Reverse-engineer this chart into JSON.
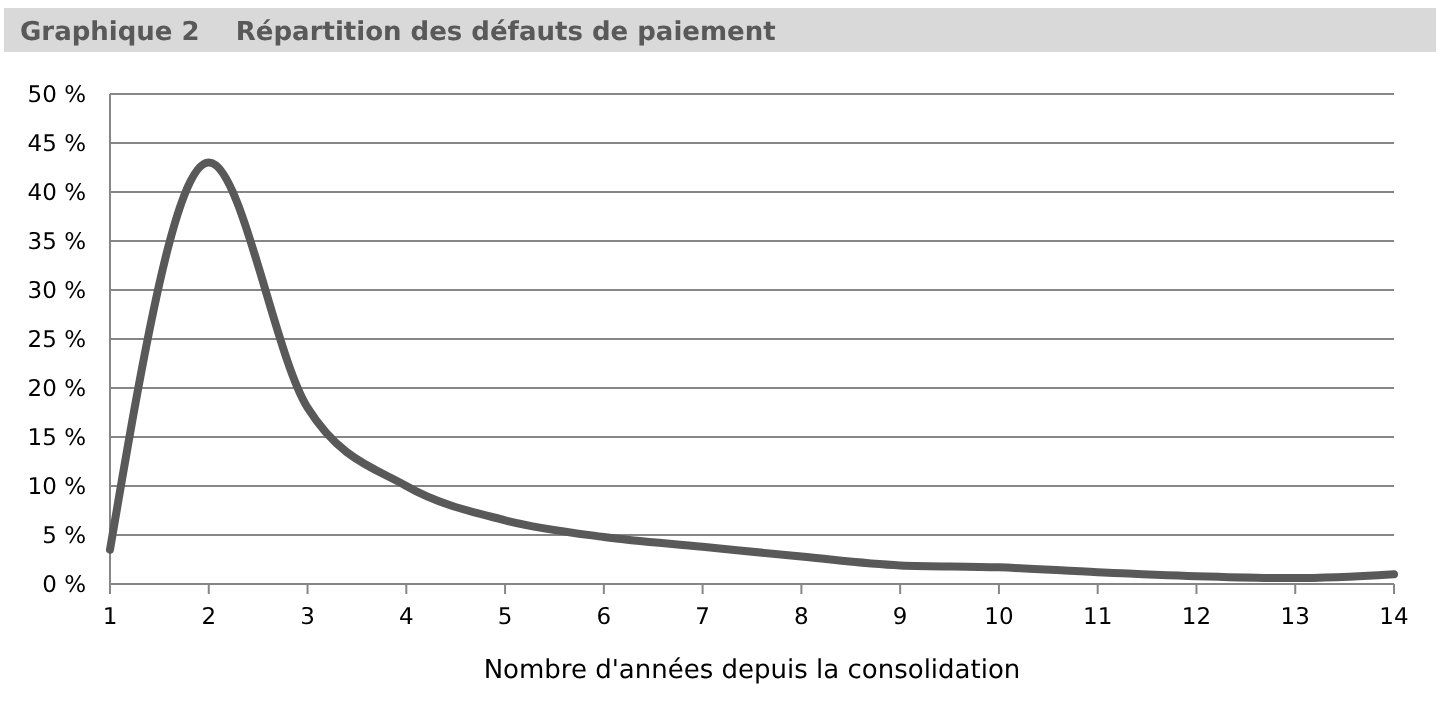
{
  "chart_data": {
    "type": "line",
    "title": "Graphique 2    Répartition des défauts de paiement",
    "xlabel": "Nombre d'années depuis la consolidation",
    "x": [
      1,
      2,
      3,
      4,
      5,
      6,
      7,
      8,
      9,
      10,
      11,
      12,
      13,
      14
    ],
    "series": [
      {
        "color": "#595959",
        "values": [
          3.5,
          43,
          18,
          10,
          6.5,
          4.8,
          3.8,
          2.8,
          1.9,
          1.7,
          1.2,
          0.8,
          0.6,
          1.0
        ]
      }
    ],
    "xlim": [
      1,
      14
    ],
    "xticks": [
      1,
      2,
      3,
      4,
      5,
      6,
      7,
      8,
      9,
      10,
      11,
      12,
      13,
      14
    ],
    "ylim": [
      0,
      50
    ],
    "yticks": [
      {
        "value": 0,
        "label": "0 %"
      },
      {
        "value": 5,
        "label": "5 %"
      },
      {
        "value": 10,
        "label": "10 %"
      },
      {
        "value": 15,
        "label": "15 %"
      },
      {
        "value": 20,
        "label": "20 %"
      },
      {
        "value": 25,
        "label": "25 %"
      },
      {
        "value": 30,
        "label": "30 %"
      },
      {
        "value": 35,
        "label": "35 %"
      },
      {
        "value": 40,
        "label": "40 %"
      },
      {
        "value": 45,
        "label": "45 %"
      },
      {
        "value": 50,
        "label": "50 %"
      }
    ],
    "grid": "y",
    "marker": "none",
    "line_style": "solid"
  }
}
